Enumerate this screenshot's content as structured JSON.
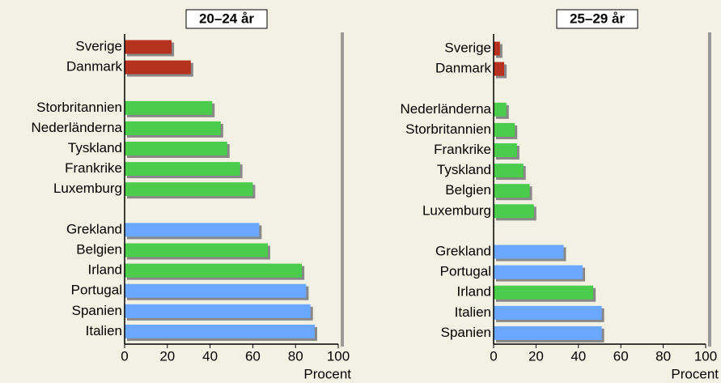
{
  "chart_data": [
    {
      "type": "bar",
      "orientation": "horizontal",
      "title": "20–24 år",
      "xlabel": "Procent",
      "categories": [
        "Sverige",
        "Danmark",
        null,
        "Storbritannien",
        "Nederländerna",
        "Tyskland",
        "Frankrike",
        "Luxemburg",
        null,
        "Grekland",
        "Belgien",
        "Irland",
        "Portugal",
        "Spanien",
        "Italien"
      ],
      "values": [
        22,
        31,
        null,
        41,
        45,
        48,
        54,
        60,
        null,
        63,
        67,
        83,
        85,
        87,
        89
      ],
      "colors": [
        "#b5321f",
        "#b5321f",
        null,
        "#4ccc4c",
        "#4ccc4c",
        "#4ccc4c",
        "#4ccc4c",
        "#4ccc4c",
        null,
        "#6aa8ff",
        "#4ccc4c",
        "#4ccc4c",
        "#6aa8ff",
        "#6aa8ff",
        "#6aa8ff"
      ],
      "xlim": [
        0,
        100
      ],
      "xticks": [
        0,
        20,
        40,
        60,
        80,
        100
      ]
    },
    {
      "type": "bar",
      "orientation": "horizontal",
      "title": "25–29 år",
      "xlabel": "Procent",
      "categories": [
        "Sverige",
        "Danmark",
        null,
        "Nederländerna",
        "Storbritannien",
        "Frankrike",
        "Tyskland",
        "Belgien",
        "Luxemburg",
        null,
        "Grekland",
        "Portugal",
        "Irland",
        "Italien",
        "Spanien"
      ],
      "values": [
        3,
        5,
        null,
        6,
        10,
        11,
        14,
        17,
        19,
        null,
        33,
        42,
        47,
        51,
        51
      ],
      "colors": [
        "#b5321f",
        "#b5321f",
        null,
        "#4ccc4c",
        "#4ccc4c",
        "#4ccc4c",
        "#4ccc4c",
        "#4ccc4c",
        "#4ccc4c",
        null,
        "#6aa8ff",
        "#6aa8ff",
        "#4ccc4c",
        "#6aa8ff",
        "#6aa8ff"
      ],
      "xlim": [
        0,
        100
      ],
      "xticks": [
        0,
        20,
        40,
        60,
        80,
        100
      ]
    }
  ]
}
